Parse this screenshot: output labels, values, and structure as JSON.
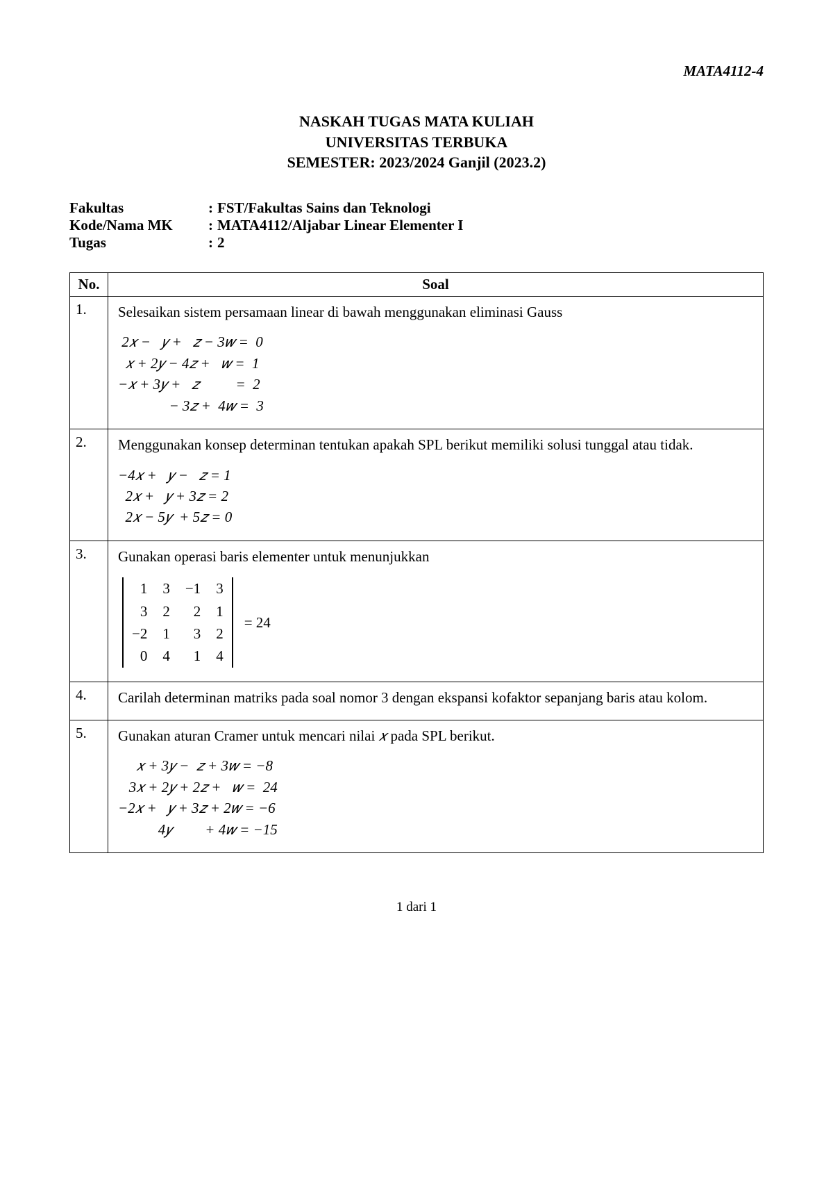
{
  "header": {
    "course_code_top": "MATA4112-4",
    "title1": "NASKAH TUGAS MATA KULIAH",
    "title2": "UNIVERSITAS TERBUKA",
    "title3": "SEMESTER: 2023/2024 Ganjil (2023.2)"
  },
  "meta": {
    "rows": [
      {
        "label": "Fakultas",
        "value": "FST/Fakultas Sains dan Teknologi"
      },
      {
        "label": "Kode/Nama MK",
        "value": "MATA4112/Aljabar Linear Elementer I"
      },
      {
        "label": "Tugas",
        "value": "2"
      }
    ]
  },
  "table": {
    "col_no": "No.",
    "col_soal": "Soal"
  },
  "questions": [
    {
      "no": "1.",
      "text": "Selesaikan sistem persamaan linear di bawah menggunakan eliminasi Gauss",
      "eq": " 2𝑥 −   𝑦 +   𝑧 − 3𝑤 =  0\n  𝑥 + 2𝑦 − 4𝑧 +   𝑤 =  1\n−𝑥 + 3𝑦 +   𝑧          =  2\n              − 3𝑧 +  4𝑤 =  3"
    },
    {
      "no": "2.",
      "text": "Menggunakan konsep determinan tentukan apakah SPL berikut memiliki solusi tunggal atau tidak.",
      "eq": "−4𝑥 +   𝑦 −   𝑧 = 1\n  2𝑥 +   𝑦 + 3𝑧 = 2\n  2𝑥 − 5𝑦  + 5𝑧 = 0"
    },
    {
      "no": "3.",
      "text": "Gunakan operasi baris elementer untuk menunjukkan",
      "det": {
        "cells": [
          "1",
          "3",
          "−1",
          "3",
          "3",
          "2",
          "2",
          "1",
          "−2",
          "1",
          "3",
          "2",
          "0",
          "4",
          "1",
          "4"
        ],
        "rhs": "= 24"
      }
    },
    {
      "no": "4.",
      "text": "Carilah determinan matriks pada soal nomor 3 dengan ekspansi kofaktor sepanjang baris atau kolom."
    },
    {
      "no": "5.",
      "text_prefix": "Gunakan aturan Cramer untuk mencari nilai ",
      "text_var": "𝑥",
      "text_suffix": " pada SPL berikut.",
      "eq": "     𝑥 + 3𝑦 −  𝑧 + 3𝑤 = −8\n   3𝑥 + 2𝑦 + 2𝑧 +   𝑤 =  24\n−2𝑥 +   𝑦 + 3𝑧 + 2𝑤 = −6\n           4𝑦         + 4𝑤 = −15"
    }
  ],
  "pager": "1 dari 1",
  "colors": {
    "text": "#000000",
    "bg": "#ffffff",
    "border": "#000000"
  }
}
